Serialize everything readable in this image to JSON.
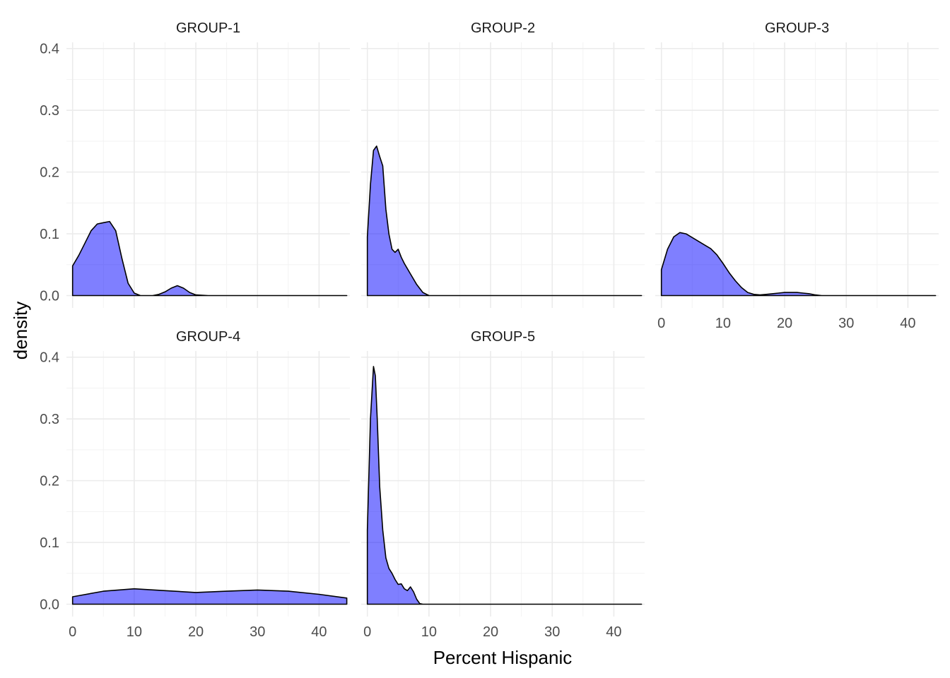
{
  "chart_data": {
    "type": "area",
    "xlabel": "Percent Hispanic",
    "ylabel": "density",
    "xlim": [
      -1,
      45
    ],
    "ylim": [
      -0.02,
      0.41
    ],
    "x_ticks": [
      0,
      10,
      20,
      30,
      40
    ],
    "y_ticks": [
      0.0,
      0.1,
      0.2,
      0.3,
      0.4
    ],
    "x_tick_labels": [
      "0",
      "10",
      "20",
      "30",
      "40"
    ],
    "y_tick_labels": [
      "0.0",
      "0.1",
      "0.2",
      "0.3",
      "0.4"
    ],
    "grid": true,
    "fill_color": "#0000FF",
    "fill_opacity": 0.5,
    "line_color": "#000000",
    "panels": [
      {
        "title": "GROUP-1",
        "x": [
          0,
          1,
          2,
          3,
          4,
          5,
          6,
          7,
          8,
          9,
          10,
          11,
          12,
          13,
          14,
          15,
          16,
          17,
          18,
          19,
          20,
          22,
          25,
          30,
          35,
          40,
          44.5
        ],
        "y": [
          0.048,
          0.065,
          0.085,
          0.105,
          0.116,
          0.118,
          0.12,
          0.105,
          0.06,
          0.02,
          0.004,
          0.0,
          0.0,
          0.0,
          0.002,
          0.006,
          0.012,
          0.016,
          0.012,
          0.005,
          0.001,
          0.0,
          0.0,
          0.0,
          0.0,
          0.0,
          0.0
        ]
      },
      {
        "title": "GROUP-2",
        "x": [
          0,
          0.5,
          1,
          1.5,
          2,
          2.5,
          3,
          3.5,
          4,
          4.5,
          5,
          5.5,
          6,
          7,
          8,
          9,
          10,
          12,
          15,
          20,
          30,
          40,
          44.5
        ],
        "y": [
          0.095,
          0.18,
          0.235,
          0.242,
          0.225,
          0.21,
          0.14,
          0.1,
          0.075,
          0.07,
          0.075,
          0.062,
          0.052,
          0.035,
          0.018,
          0.005,
          0.0,
          0.0,
          0.0,
          0.0,
          0.0,
          0.0,
          0.0
        ]
      },
      {
        "title": "GROUP-3",
        "x": [
          0,
          1,
          2,
          3,
          4,
          5,
          6,
          7,
          8,
          9,
          10,
          11,
          12,
          13,
          14,
          15,
          16,
          17,
          18,
          19,
          20,
          21,
          22,
          23,
          24,
          25,
          26,
          28,
          30,
          35,
          40,
          44.5
        ],
        "y": [
          0.042,
          0.075,
          0.095,
          0.102,
          0.1,
          0.094,
          0.088,
          0.082,
          0.076,
          0.066,
          0.052,
          0.037,
          0.024,
          0.013,
          0.005,
          0.002,
          0.001,
          0.002,
          0.003,
          0.004,
          0.005,
          0.005,
          0.005,
          0.004,
          0.003,
          0.001,
          0.0,
          0.0,
          0.0,
          0.0,
          0.0,
          0.0
        ]
      },
      {
        "title": "GROUP-4",
        "x": [
          0,
          5,
          10,
          15,
          20,
          25,
          30,
          35,
          40,
          44.5
        ],
        "y": [
          0.012,
          0.021,
          0.025,
          0.022,
          0.019,
          0.021,
          0.023,
          0.021,
          0.016,
          0.01
        ]
      },
      {
        "title": "GROUP-5",
        "x": [
          0,
          0.5,
          1,
          1.3,
          1.6,
          2,
          2.5,
          3,
          3.5,
          4,
          4.5,
          5,
          5.5,
          6,
          6.5,
          7,
          7.5,
          8,
          8.5,
          9,
          12,
          20,
          30,
          40,
          44.5
        ],
        "y": [
          0.12,
          0.3,
          0.385,
          0.37,
          0.3,
          0.19,
          0.12,
          0.075,
          0.058,
          0.05,
          0.04,
          0.032,
          0.033,
          0.025,
          0.022,
          0.028,
          0.02,
          0.008,
          0.001,
          0.0,
          0.0,
          0.0,
          0.0,
          0.0,
          0.0
        ]
      }
    ]
  }
}
